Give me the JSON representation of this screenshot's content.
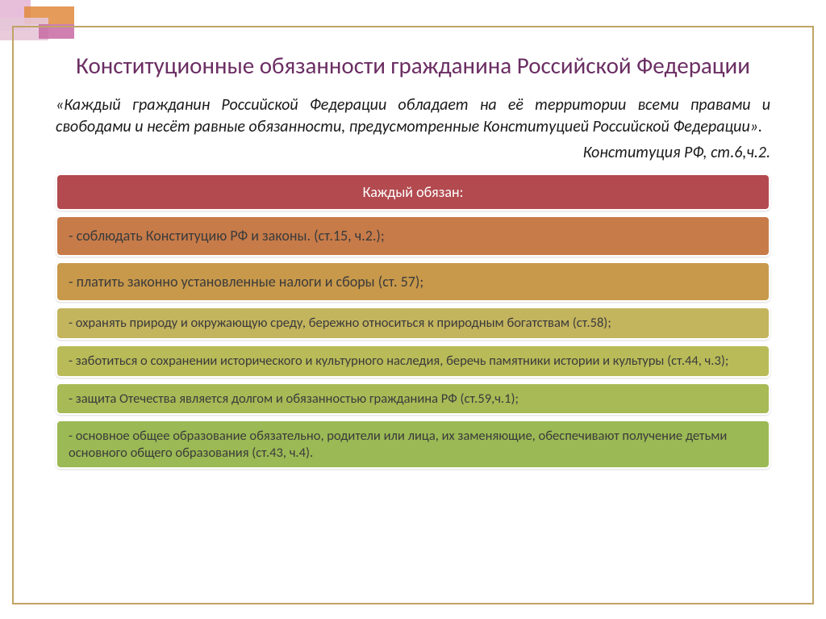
{
  "colors": {
    "frame_border": "#c0a464",
    "title_color": "#6b2e63",
    "text_color": "#1a1a1a",
    "header_bg": "#b24a4f",
    "header_text": "#ffffff",
    "rows_bg": [
      "#c77b49",
      "#c8994b",
      "#c3b45e",
      "#b9bb58",
      "#a7ba56",
      "#9bb954"
    ],
    "rows_text": "#3b3b3b"
  },
  "typography": {
    "title_fontsize": 29,
    "quote_fontsize": 20,
    "row_fontsize": 16.5,
    "header_fontsize": 18
  },
  "title": "Конституционные обязанности гражданина Российской Федерации",
  "quote": "«Каждый гражданин Российской Федерации обладает на её территории всеми правами и свободами и несёт равные обязанности, предусмотренные Конституцией Российской Федерации».",
  "quote_source": "Конституция РФ, ст.6,ч.2.",
  "table": {
    "header": "Каждый обязан:",
    "rows": [
      "- соблюдать Конституцию РФ и законы. (ст.15, ч.2.);",
      "- платить законно установленные налоги и сборы (ст. 57);",
      "- охранять природу и окружающую среду, бережно относиться к природным богатствам (ст.58);",
      "- заботиться о сохранении исторического  и культурного наследия, беречь памятники истории и культуры (ст.44, ч.3);",
      "- защита Отечества является долгом и обязанностью гражданина РФ (ст.59,ч.1);",
      "- основное общее образование обязательно, родители или лица, их заменяющие, обеспечивают получение детьми основного общего образования (ст.43, ч.4)."
    ]
  }
}
